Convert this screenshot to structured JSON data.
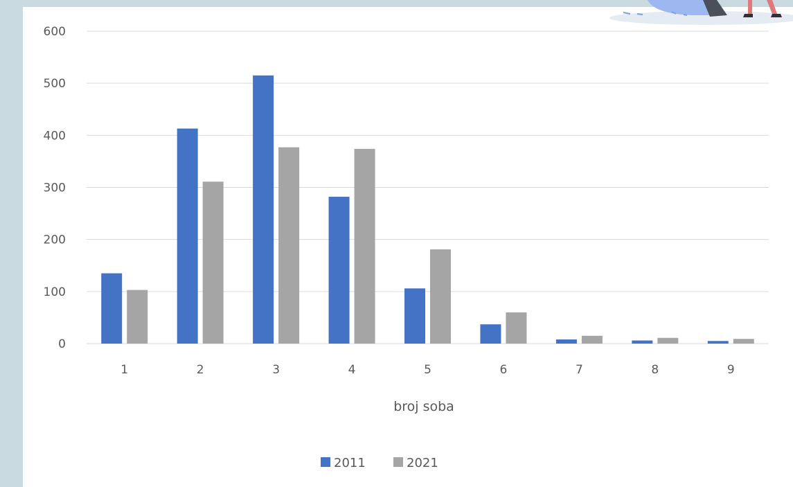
{
  "chart_data": {
    "type": "bar",
    "title": "",
    "xlabel": "broj soba",
    "ylabel": "",
    "categories": [
      "1",
      "2",
      "3",
      "4",
      "5",
      "6",
      "7",
      "8",
      "9"
    ],
    "series": [
      {
        "name": "2011",
        "values": [
          135,
          413,
          515,
          282,
          106,
          37,
          8,
          6,
          5
        ],
        "color": "#4472c4"
      },
      {
        "name": "2021",
        "values": [
          103,
          311,
          377,
          374,
          181,
          60,
          15,
          11,
          9
        ],
        "color": "#a5a5a5"
      }
    ],
    "ylim": [
      0,
      600
    ],
    "yticks": [
      0,
      100,
      200,
      300,
      400,
      500,
      600
    ],
    "grid": true,
    "legend_position": "bottom",
    "colors": {
      "gridline": "#d9d9d9",
      "background": "#ffffff",
      "page_background": "#c9d9e0"
    }
  }
}
